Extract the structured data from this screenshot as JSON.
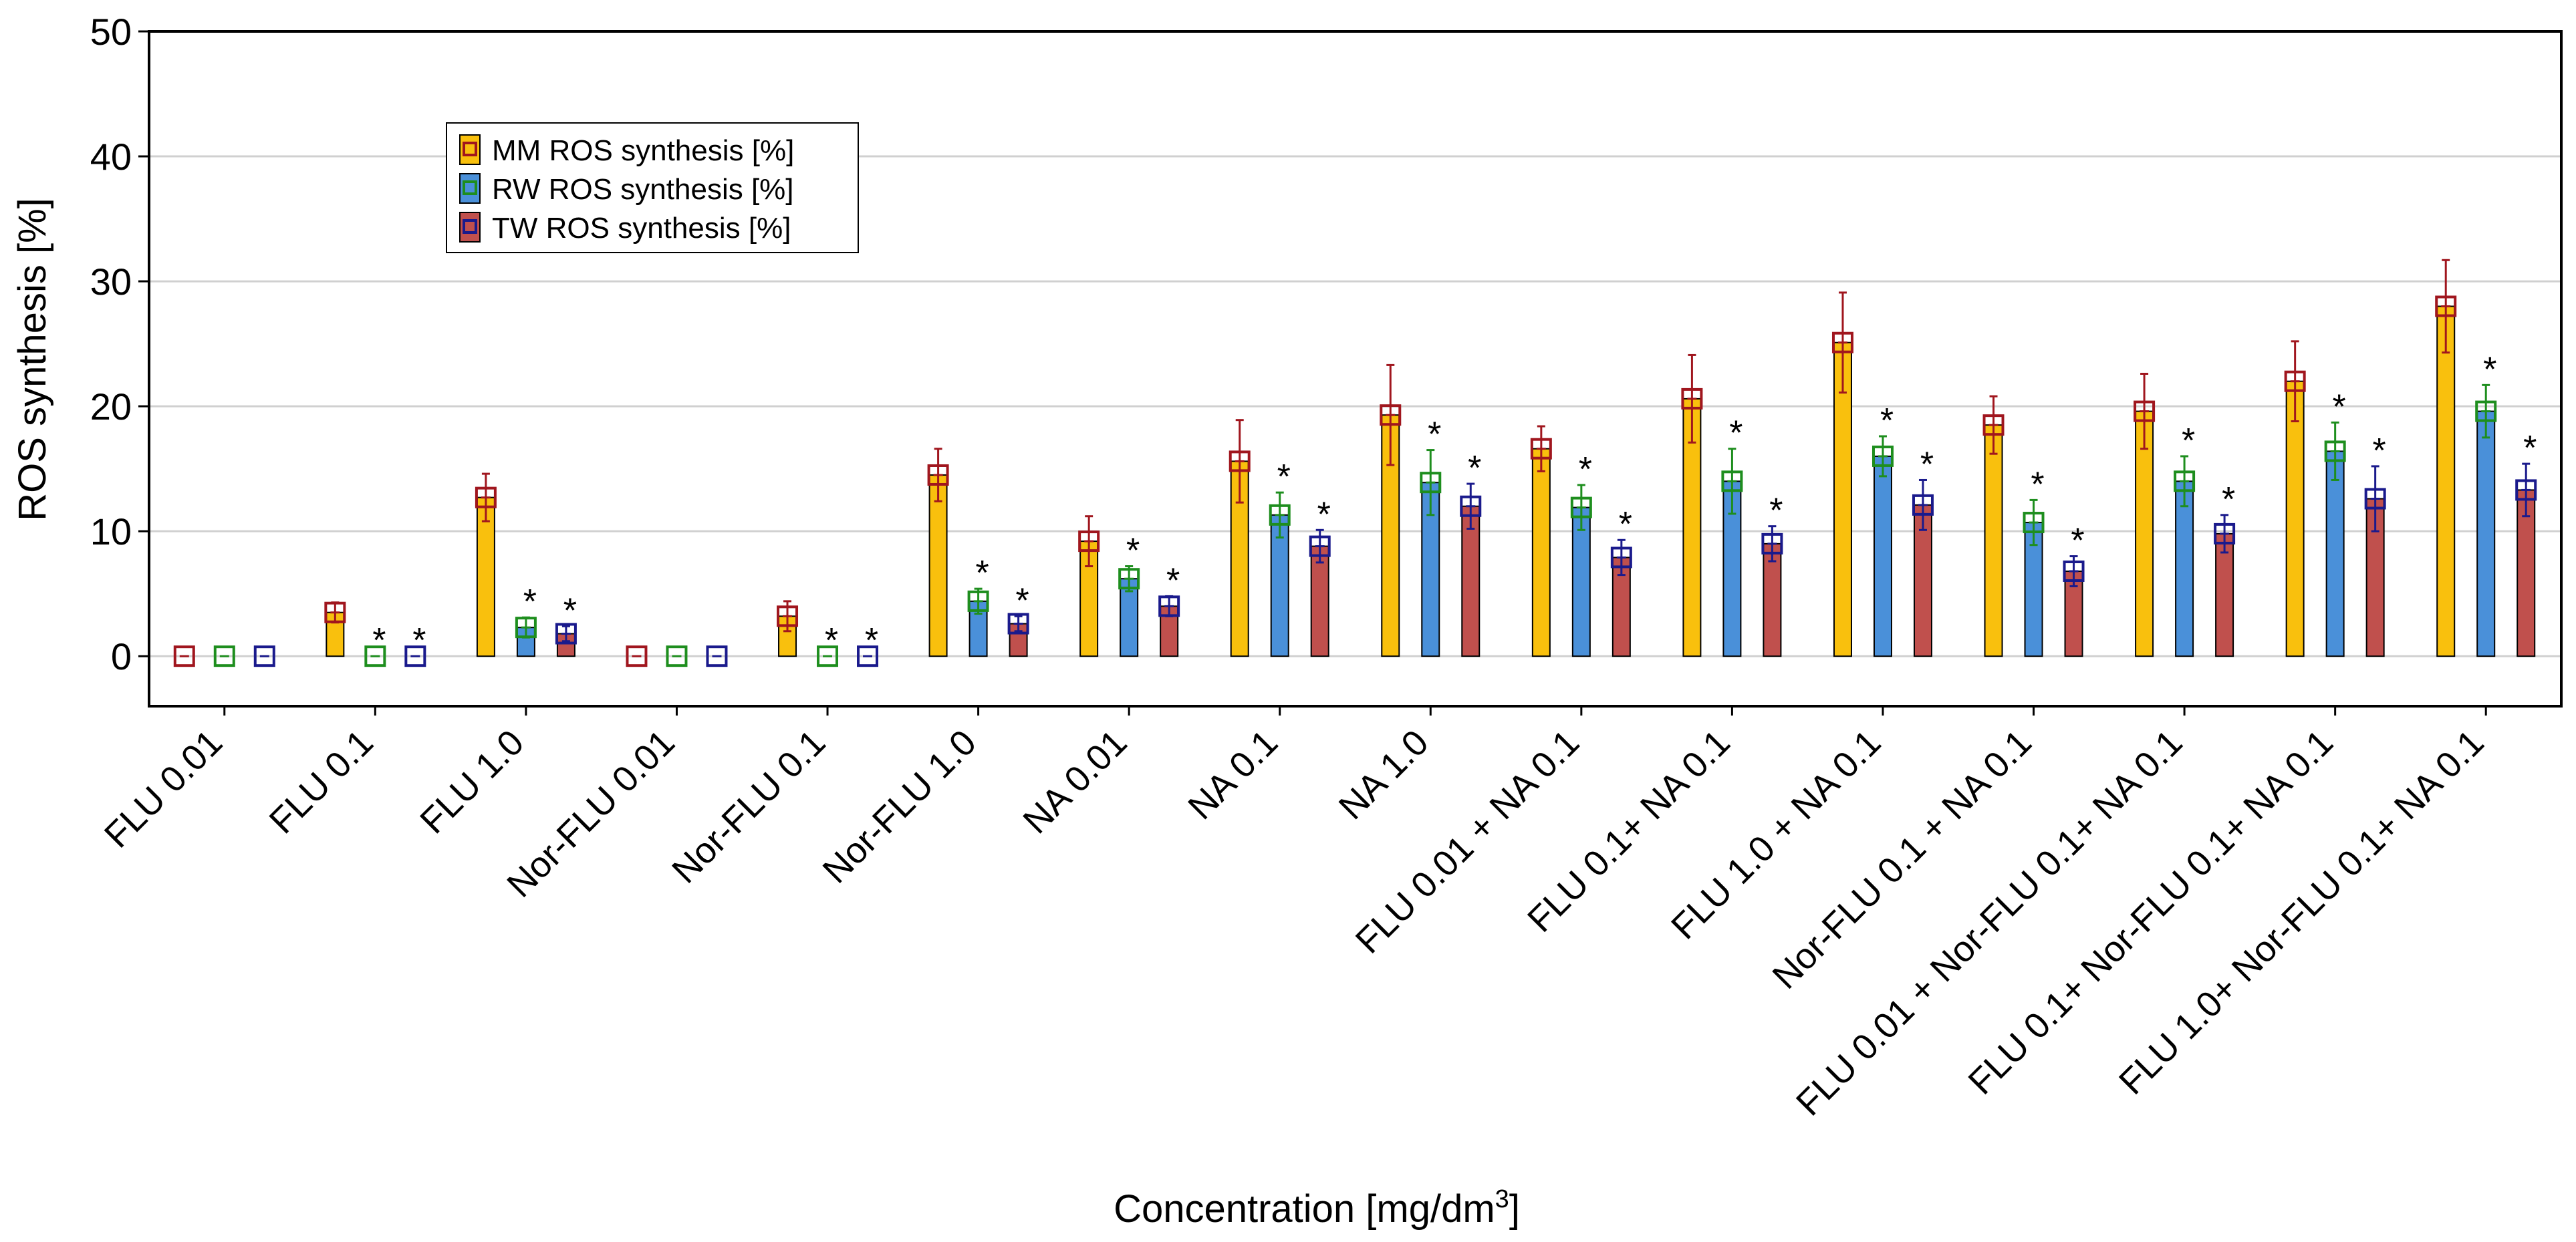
{
  "chart_data": {
    "type": "bar",
    "title": "",
    "xlabel": "Concentration [mg/dm",
    "xlabel_sup": "3",
    "xlabel_end": "]",
    "ylabel": "ROS synthesis [%]",
    "ylim": [
      -4,
      50
    ],
    "yticks": [
      0,
      10,
      20,
      30,
      40,
      50
    ],
    "ytick_labels": [
      "0",
      "10",
      "20",
      "30",
      "40",
      "50"
    ],
    "grid": true,
    "legend_position": "upper-left",
    "categories": [
      "FLU 0.01",
      "FLU 0.1",
      "FLU 1.0",
      "Nor-FLU 0.01",
      "Nor-FLU 0.1",
      "Nor-FLU 1.0",
      "NA 0.01",
      "NA 0.1",
      "NA 1.0",
      "FLU 0.01 + NA 0.1",
      "FLU 0.1+ NA 0.1",
      "FLU 1.0 + NA 0.1",
      "Nor-FLU 0.1 + NA 0.1",
      "FLU 0.01 + Nor-FLU 0.1+ NA 0.1",
      "FLU 0.1+ Nor-FLU 0.1+ NA 0.1",
      "FLU 1.0+ Nor-FLU 0.1+ NA 0.1"
    ],
    "significance_marker": "*",
    "series": [
      {
        "name": "MM ROS synthesis [%]",
        "fill": "#F9C00D",
        "marker_color": "#A0161E",
        "values": [
          0,
          3.5,
          12.7,
          0,
          3.2,
          14.5,
          9.2,
          15.6,
          19.3,
          16.6,
          20.6,
          25.1,
          18.5,
          19.6,
          22.0,
          28.0
        ],
        "errors": [
          0,
          0.8,
          1.9,
          0,
          1.2,
          2.1,
          2.0,
          3.3,
          4.0,
          1.8,
          3.5,
          4.0,
          2.3,
          3.0,
          3.2,
          3.7
        ],
        "significant": [
          false,
          false,
          false,
          false,
          false,
          false,
          false,
          false,
          false,
          false,
          false,
          false,
          false,
          false,
          false,
          false
        ]
      },
      {
        "name": "RW ROS synthesis [%]",
        "fill": "#4A90D9",
        "marker_color": "#1E8E1E",
        "values": [
          0,
          0,
          2.3,
          0,
          0,
          4.4,
          6.2,
          11.3,
          13.9,
          11.9,
          14.0,
          16.0,
          10.7,
          14.0,
          16.4,
          19.6
        ],
        "errors": [
          0,
          0,
          0.8,
          0,
          0,
          1.0,
          1.0,
          1.8,
          2.6,
          1.8,
          2.6,
          1.6,
          1.8,
          2.0,
          2.3,
          2.1
        ],
        "significant": [
          false,
          true,
          true,
          false,
          true,
          true,
          true,
          true,
          true,
          true,
          true,
          true,
          true,
          true,
          true,
          true
        ]
      },
      {
        "name": "TW ROS synthesis [%]",
        "fill": "#C0504D",
        "marker_color": "#1A1A8C",
        "values": [
          0,
          0,
          1.8,
          0,
          0,
          2.6,
          4.0,
          8.8,
          12.0,
          7.9,
          9.0,
          12.1,
          6.8,
          9.8,
          12.6,
          13.3
        ],
        "errors": [
          0,
          0,
          0.6,
          0,
          0,
          0.6,
          0.8,
          1.3,
          1.8,
          1.4,
          1.4,
          2.0,
          1.2,
          1.5,
          2.6,
          2.1
        ],
        "significant": [
          false,
          true,
          true,
          false,
          true,
          true,
          true,
          true,
          true,
          true,
          true,
          true,
          true,
          true,
          true,
          true
        ]
      }
    ]
  }
}
